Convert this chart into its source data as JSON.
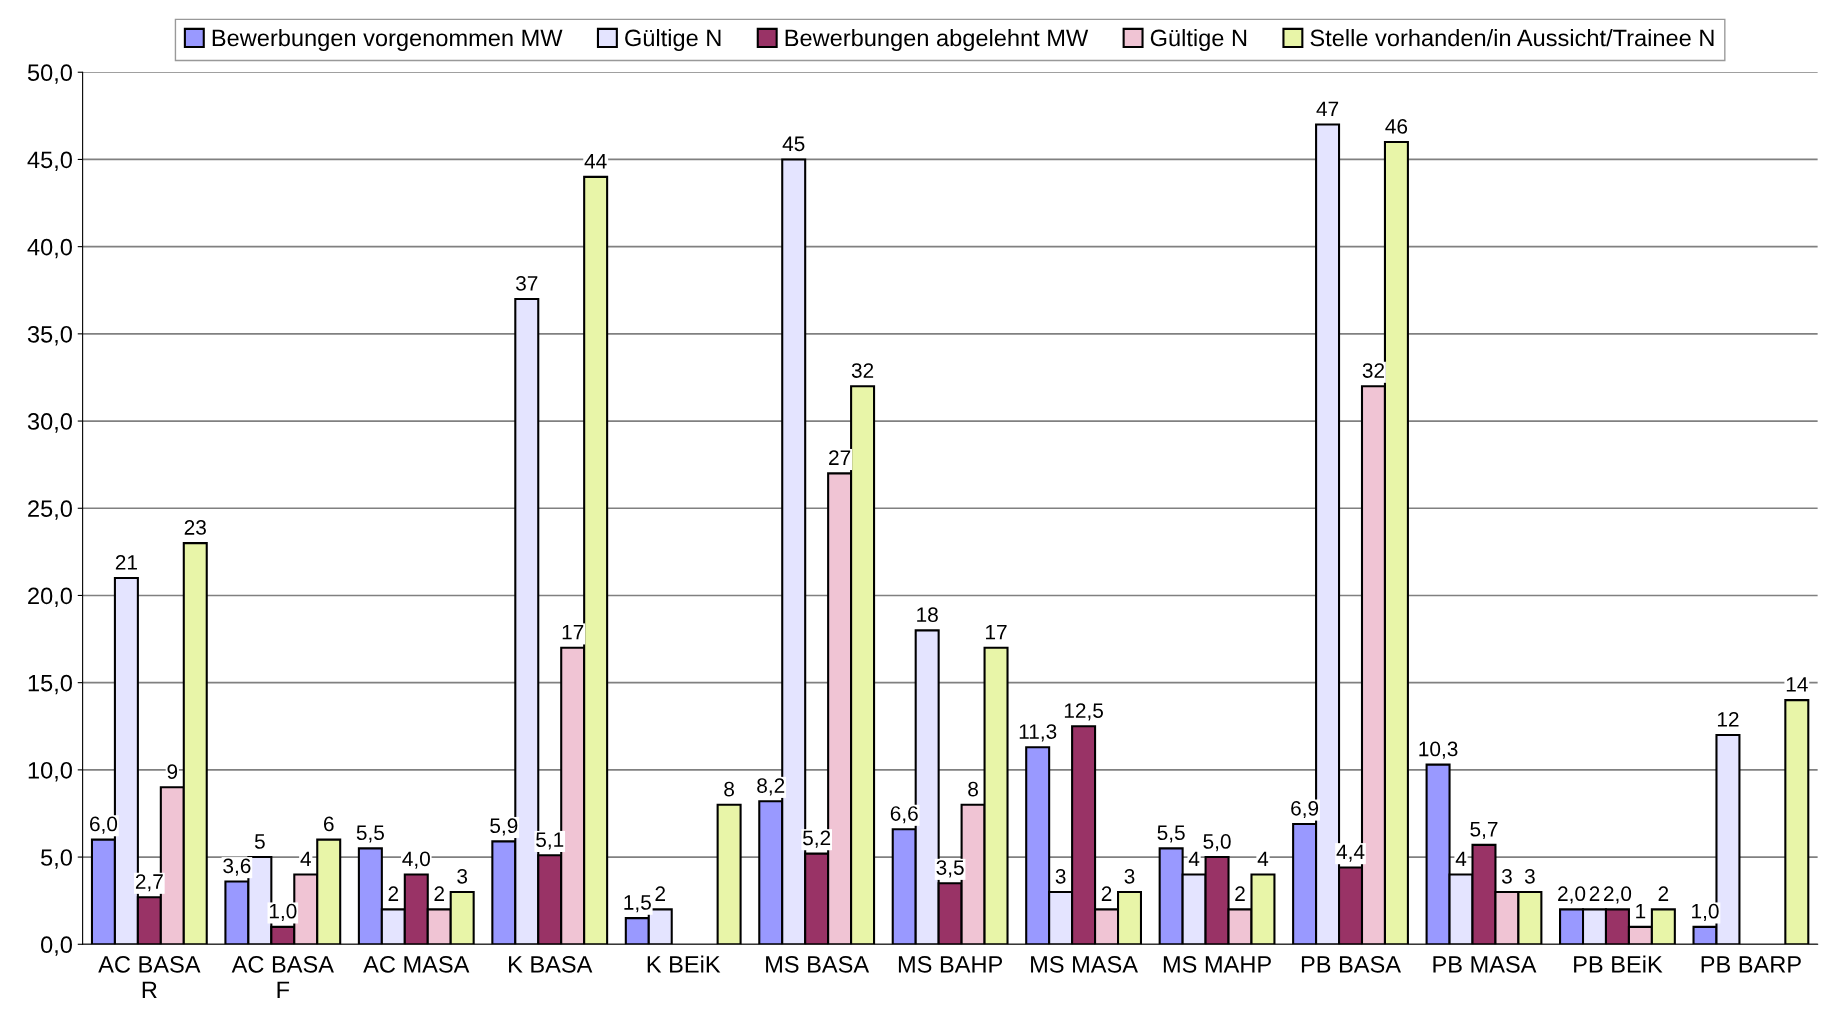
{
  "chart_data": {
    "type": "bar",
    "categories": [
      "AC BASA\nR",
      "AC BASA\nF",
      "AC MASA",
      "K BASA",
      "K BEiK",
      "MS BASA",
      "MS BAHP",
      "MS MASA",
      "MS MAHP",
      "PB BASA",
      "PB MASA",
      "PB BEiK",
      "PB BARP"
    ],
    "series": [
      {
        "name": "Bewerbungen vorgenommen MW",
        "color": "#9999ff",
        "values": [
          6.0,
          3.6,
          5.5,
          5.9,
          1.5,
          8.2,
          6.6,
          11.3,
          5.5,
          6.9,
          10.3,
          2.0,
          1.0
        ],
        "value_labels": [
          "6,0",
          "3,6",
          "5,5",
          "5,9",
          "1,5",
          "8,2",
          "6,6",
          "11,3",
          "5,5",
          "6,9",
          "10,3",
          "2,0",
          "1,0"
        ]
      },
      {
        "name": "Gültige N",
        "color": "#e4e4ff",
        "values": [
          21,
          5,
          2,
          37,
          2,
          45,
          18,
          3,
          4,
          47,
          4,
          2,
          12
        ],
        "value_labels": [
          "21",
          "5",
          "2",
          "37",
          "2",
          "45",
          "18",
          "3",
          "4",
          "47",
          "4",
          "2",
          "12"
        ]
      },
      {
        "name": "Bewerbungen abgelehnt MW",
        "color": "#993366",
        "values": [
          2.7,
          1.0,
          4.0,
          5.1,
          null,
          5.2,
          3.5,
          12.5,
          5.0,
          4.4,
          5.7,
          2.0,
          null
        ],
        "value_labels": [
          "2,7",
          "1,0",
          "4,0",
          "5,1",
          null,
          "5,2",
          "3,5",
          "12,5",
          "5,0",
          "4,4",
          "5,7",
          "2,0",
          null
        ]
      },
      {
        "name": "Gültige N",
        "color": "#f0c4d4",
        "values": [
          9,
          4,
          2,
          17,
          null,
          27,
          8,
          2,
          2,
          32,
          3,
          1,
          null
        ],
        "value_labels": [
          "9",
          "4",
          "2",
          "17",
          null,
          "27",
          "8",
          "2",
          "2",
          "32",
          "3",
          "1",
          null
        ]
      },
      {
        "name": "Stelle vorhanden/in Aussicht/Trainee N",
        "color": "#e8f5a8",
        "values": [
          23,
          6,
          3,
          44,
          8,
          32,
          17,
          3,
          4,
          46,
          3,
          2,
          14
        ],
        "value_labels": [
          "23",
          "6",
          "3",
          "44",
          "8",
          "32",
          "17",
          "3",
          "4",
          "46",
          "3",
          "2",
          "14"
        ]
      }
    ],
    "ylim": [
      0,
      50
    ],
    "yticks": [
      {
        "value": 0,
        "label": "0,0"
      },
      {
        "value": 5,
        "label": "5,0"
      },
      {
        "value": 10,
        "label": "10,0"
      },
      {
        "value": 15,
        "label": "15,0"
      },
      {
        "value": 20,
        "label": "20,0"
      },
      {
        "value": 25,
        "label": "25,0"
      },
      {
        "value": 30,
        "label": "30,0"
      },
      {
        "value": 35,
        "label": "35,0"
      },
      {
        "value": 40,
        "label": "40,0"
      },
      {
        "value": 45,
        "label": "45,0"
      },
      {
        "value": 50,
        "label": "50,0"
      }
    ],
    "grid": "y",
    "legend": "top"
  }
}
